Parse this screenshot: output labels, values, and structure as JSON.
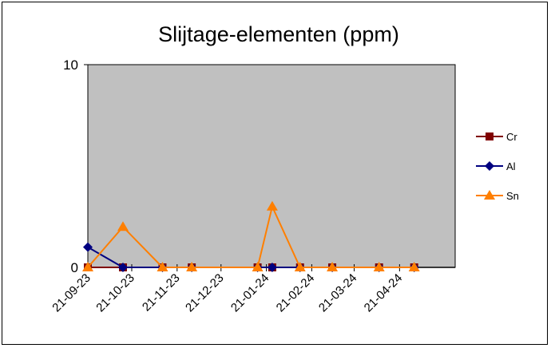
{
  "chart_data": {
    "type": "line",
    "title": "Slijtage-elementen (ppm)",
    "xlabel": "",
    "ylabel": "",
    "ylim": [
      0,
      10
    ],
    "y_ticks": [
      "0",
      "10"
    ],
    "x_range": [
      "2023-09-21",
      "2024-05-29"
    ],
    "x_tick_labels": [
      {
        "date": "2023-09-21",
        "label": "21-09-23"
      },
      {
        "date": "2023-10-21",
        "label": "21-10-23"
      },
      {
        "date": "2023-11-21",
        "label": "21-11-23"
      },
      {
        "date": "2023-12-21",
        "label": "21-12-23"
      },
      {
        "date": "2024-01-21",
        "label": "21-01-24"
      },
      {
        "date": "2024-02-21",
        "label": "21-02-24"
      },
      {
        "date": "2024-03-21",
        "label": "21-03-24"
      },
      {
        "date": "2024-04-21",
        "label": "21-04-24"
      }
    ],
    "grid": false,
    "legend_position": "right",
    "plot_background": "#c0c0c0",
    "series": [
      {
        "name": "Cr",
        "color": "#800000",
        "marker": "square",
        "points": [
          {
            "x": "2023-09-21",
            "y": 0
          },
          {
            "x": "2023-10-15",
            "y": 0
          },
          {
            "x": "2023-11-11",
            "y": 0
          },
          {
            "x": "2023-12-01",
            "y": 0
          },
          {
            "x": "2024-01-15",
            "y": 0
          },
          {
            "x": "2024-01-25",
            "y": 0
          },
          {
            "x": "2024-02-13",
            "y": 0
          },
          {
            "x": "2024-03-06",
            "y": 0
          },
          {
            "x": "2024-04-07",
            "y": 0
          },
          {
            "x": "2024-05-01",
            "y": 0
          }
        ]
      },
      {
        "name": "Al",
        "color": "#000080",
        "marker": "diamond",
        "points": [
          {
            "x": "2023-09-21",
            "y": 1
          },
          {
            "x": "2023-10-15",
            "y": 0
          },
          {
            "x": "2023-11-11",
            "y": 0
          },
          {
            "x": "2023-12-01",
            "y": 0
          },
          {
            "x": "2024-01-15",
            "y": 0
          },
          {
            "x": "2024-01-25",
            "y": 0
          },
          {
            "x": "2024-02-13",
            "y": 0
          },
          {
            "x": "2024-03-06",
            "y": 0
          },
          {
            "x": "2024-04-07",
            "y": 0
          },
          {
            "x": "2024-05-01",
            "y": 0
          }
        ]
      },
      {
        "name": "Sn",
        "color": "#ff7f00",
        "marker": "triangle",
        "points": [
          {
            "x": "2023-09-21",
            "y": 0
          },
          {
            "x": "2023-10-15",
            "y": 2
          },
          {
            "x": "2023-11-11",
            "y": 0
          },
          {
            "x": "2023-12-01",
            "y": 0
          },
          {
            "x": "2024-01-15",
            "y": 0
          },
          {
            "x": "2024-01-25",
            "y": 3
          },
          {
            "x": "2024-02-13",
            "y": 0
          },
          {
            "x": "2024-03-06",
            "y": 0
          },
          {
            "x": "2024-04-07",
            "y": 0
          },
          {
            "x": "2024-05-01",
            "y": 0
          }
        ]
      }
    ]
  }
}
